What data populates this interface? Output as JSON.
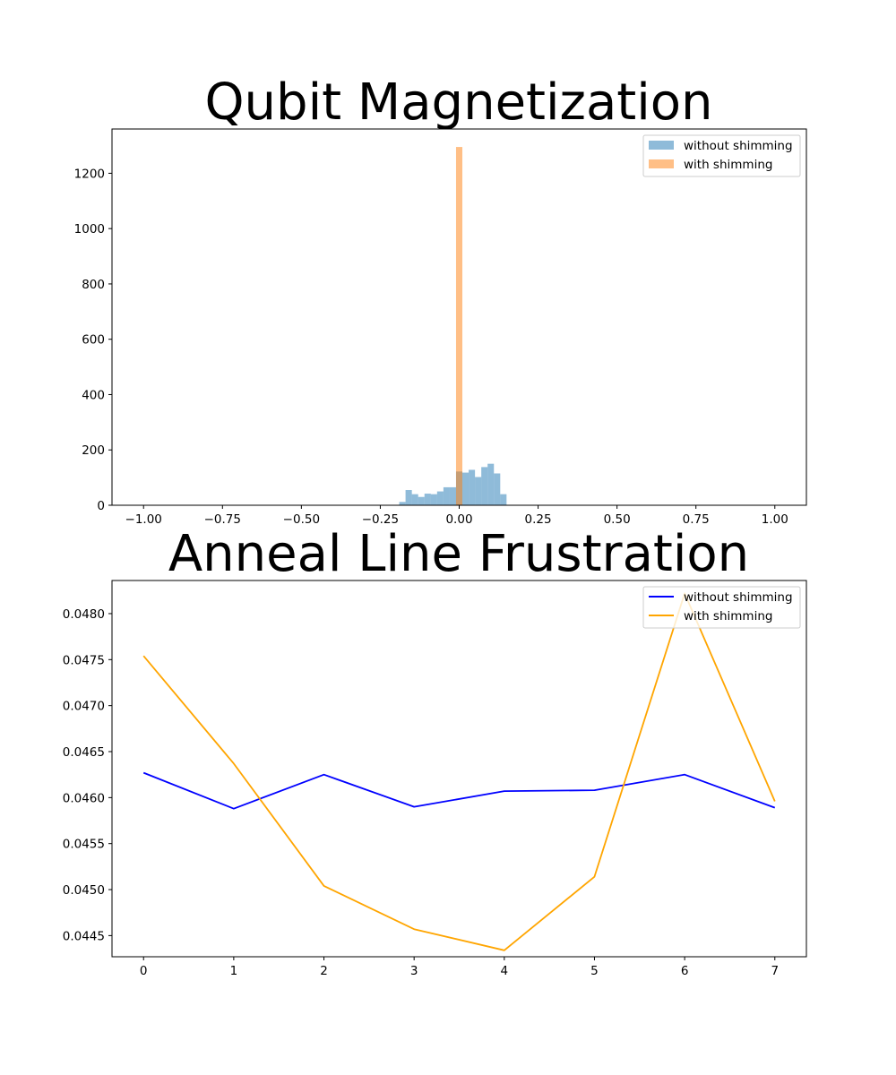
{
  "chart_data": [
    {
      "type": "bar",
      "subtype": "histogram",
      "title": "Qubit Magnetization",
      "xlabel": "",
      "ylabel": "",
      "xlim": [
        -1.1,
        1.1
      ],
      "ylim": [
        0,
        1360
      ],
      "x_ticks": [
        -1.0,
        -0.75,
        -0.5,
        -0.25,
        0.0,
        0.25,
        0.5,
        0.75,
        1.0
      ],
      "x_tick_labels": [
        "−1.00",
        "−0.75",
        "−0.50",
        "−0.25",
        "0.00",
        "0.25",
        "0.50",
        "0.75",
        "1.00"
      ],
      "y_ticks": [
        0,
        200,
        400,
        600,
        800,
        1000,
        1200
      ],
      "y_tick_labels": [
        "0",
        "200",
        "400",
        "600",
        "800",
        "1000",
        "1200"
      ],
      "legend_position": "upper right",
      "grid": false,
      "series": [
        {
          "name": "without shimming",
          "color": "#1f77b4",
          "opacity": 0.5,
          "bin_width": 0.02,
          "bin_starts": [
            -0.19,
            -0.17,
            -0.15,
            -0.13,
            -0.11,
            -0.09,
            -0.07,
            -0.05,
            -0.03,
            -0.01,
            0.01,
            0.03,
            0.05,
            0.07,
            0.09,
            0.11,
            0.13
          ],
          "values": [
            12,
            55,
            40,
            30,
            42,
            40,
            50,
            65,
            65,
            122,
            118,
            128,
            102,
            138,
            150,
            115,
            40
          ]
        },
        {
          "name": "with shimming",
          "color": "#ff7f0e",
          "opacity": 0.5,
          "bin_width": 0.02,
          "bin_starts": [
            -0.01
          ],
          "values": [
            1295
          ]
        }
      ]
    },
    {
      "type": "line",
      "title": "Anneal Line Frustration",
      "xlabel": "",
      "ylabel": "",
      "xlim": [
        -0.35,
        7.35
      ],
      "ylim": [
        0.04427,
        0.04836
      ],
      "x_ticks": [
        0,
        1,
        2,
        3,
        4,
        5,
        6,
        7
      ],
      "x_tick_labels": [
        "0",
        "1",
        "2",
        "3",
        "4",
        "5",
        "6",
        "7"
      ],
      "y_ticks": [
        0.0445,
        0.045,
        0.0455,
        0.046,
        0.0465,
        0.047,
        0.0475,
        0.048
      ],
      "y_tick_labels": [
        "0.0445",
        "0.0450",
        "0.0455",
        "0.0460",
        "0.0465",
        "0.0470",
        "0.0475",
        "0.0480"
      ],
      "legend_position": "upper right",
      "grid": false,
      "x": [
        0,
        1,
        2,
        3,
        4,
        5,
        6,
        7
      ],
      "series": [
        {
          "name": "without shimming",
          "color": "#0000ff",
          "values": [
            0.04627,
            0.04588,
            0.04625,
            0.0459,
            0.04607,
            0.04608,
            0.04625,
            0.04589
          ]
        },
        {
          "name": "with shimming",
          "color": "#ffa500",
          "values": [
            0.04754,
            0.04637,
            0.04504,
            0.04457,
            0.04434,
            0.04514,
            0.04822,
            0.04596
          ]
        }
      ]
    }
  ]
}
